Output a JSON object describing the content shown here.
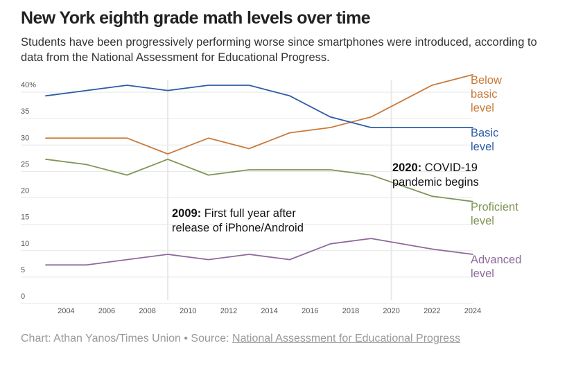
{
  "chart_data": {
    "type": "line",
    "title": "New York eighth grade math levels over time",
    "subtitle": "Students have been progressively performing worse since smartphones were introduced, according to data from the National Assessment for Educational Progress.",
    "x_ticks": [
      2004,
      2006,
      2008,
      2010,
      2012,
      2014,
      2016,
      2018,
      2020,
      2022,
      2024
    ],
    "xlim": [
      2002.2,
      2024.6
    ],
    "ylim": [
      0,
      40
    ],
    "y_ticks": [
      {
        "value": 0,
        "label": "0"
      },
      {
        "value": 5,
        "label": "5"
      },
      {
        "value": 10,
        "label": "10"
      },
      {
        "value": 15,
        "label": "15"
      },
      {
        "value": 20,
        "label": "20"
      },
      {
        "value": 25,
        "label": "25"
      },
      {
        "value": 30,
        "label": "30"
      },
      {
        "value": 35,
        "label": "35"
      },
      {
        "value": 40,
        "label": "40%"
      }
    ],
    "grid": "horizontal",
    "series": [
      {
        "name": "Below basic level",
        "label_lines": [
          "Below",
          "basic",
          "level"
        ],
        "color": "#c87a3a",
        "x": [
          2003,
          2005,
          2007,
          2009,
          2011,
          2013,
          2015,
          2017,
          2019,
          2022,
          2024
        ],
        "values": [
          30,
          30,
          30,
          27,
          30,
          28,
          31,
          32,
          34,
          40,
          42
        ]
      },
      {
        "name": "Basic level",
        "label_lines": [
          "Basic",
          "level"
        ],
        "color": "#2e5ca5",
        "x": [
          2003,
          2005,
          2007,
          2009,
          2011,
          2013,
          2015,
          2017,
          2019,
          2022,
          2024
        ],
        "values": [
          38,
          39,
          40,
          39,
          40,
          40,
          38,
          34,
          32,
          32,
          32
        ]
      },
      {
        "name": "Proficient level",
        "label_lines": [
          "Proficient",
          "level"
        ],
        "color": "#7f9556",
        "x": [
          2003,
          2005,
          2007,
          2009,
          2011,
          2013,
          2015,
          2017,
          2019,
          2022,
          2024
        ],
        "values": [
          26,
          25,
          23,
          26,
          23,
          24,
          24,
          24,
          23,
          19,
          18
        ]
      },
      {
        "name": "Advanced level",
        "label_lines": [
          "Advanced",
          "level"
        ],
        "color": "#8e6a9a",
        "x": [
          2003,
          2005,
          2007,
          2009,
          2011,
          2013,
          2015,
          2017,
          2019,
          2022,
          2024
        ],
        "values": [
          6,
          6,
          7,
          8,
          7,
          8,
          7,
          10,
          11,
          9,
          8
        ]
      }
    ],
    "annotations": [
      {
        "x": 2009,
        "bold": "2009:",
        "line1_rest": " First full year after",
        "line2": "release of iPhone/Android"
      },
      {
        "x": 2020,
        "bold": "2020:",
        "line1_rest": " COVID-19",
        "line2": "pandemic begins"
      }
    ]
  },
  "footer": {
    "prefix": "Chart: Athan Yanos/Times Union • Source: ",
    "source_link": "National Assessment for Educational Progress"
  }
}
